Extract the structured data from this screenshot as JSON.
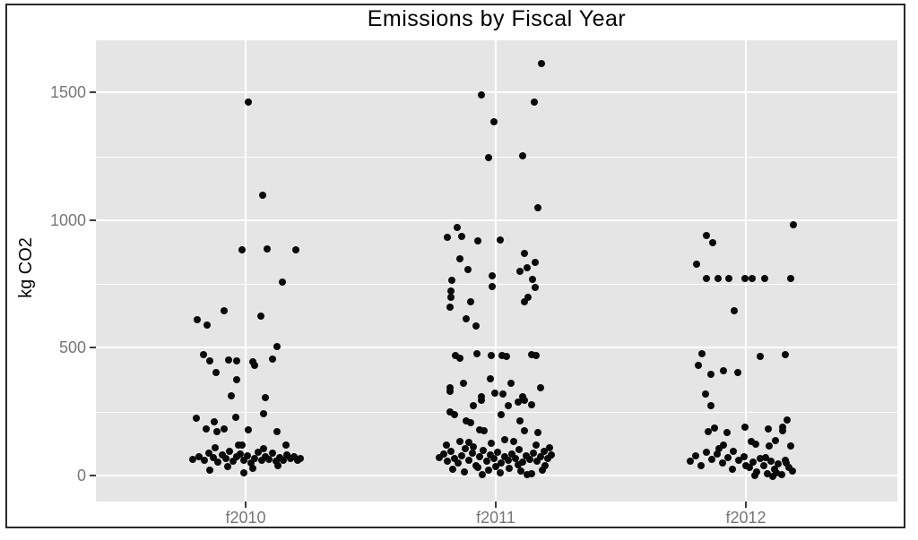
{
  "chart_data": {
    "type": "scatter",
    "subtype": "jittered-strip-plot",
    "title": "Emissions by Fiscal Year",
    "xlabel": "",
    "ylabel": "kg CO2",
    "categories": [
      "f2010",
      "f2011",
      "f2012"
    ],
    "y_ticks": [
      0,
      500,
      1000,
      1500
    ],
    "y_minor_ticks": [
      250,
      750,
      1250
    ],
    "ylim": [
      -100,
      1710
    ],
    "grid": "white-on-gray",
    "legend": "none",
    "panel_background": "#e5e5e5",
    "gridline_color": "#ffffff",
    "point_color": "#0a0a0a",
    "axis_text_color": "#767676",
    "title_color": "#000000",
    "note": "points are [jitter_px_offset_from_category_center, kg_CO2_value]",
    "series": [
      {
        "name": "f2010",
        "points": [
          [
            3,
            1461
          ],
          [
            19,
            1097
          ],
          [
            -4,
            884
          ],
          [
            24,
            887
          ],
          [
            56,
            884
          ],
          [
            41,
            757
          ],
          [
            -24,
            645
          ],
          [
            -54,
            612
          ],
          [
            -43,
            589
          ],
          [
            17,
            624
          ],
          [
            35,
            505
          ],
          [
            -47,
            473
          ],
          [
            -40,
            449
          ],
          [
            -19,
            452
          ],
          [
            -10,
            449
          ],
          [
            8,
            445
          ],
          [
            10,
            432
          ],
          [
            30,
            456
          ],
          [
            -33,
            403
          ],
          [
            -10,
            375
          ],
          [
            -16,
            312
          ],
          [
            22,
            305
          ],
          [
            20,
            242
          ],
          [
            -11,
            228
          ],
          [
            -55,
            224
          ],
          [
            -35,
            210
          ],
          [
            -44,
            182
          ],
          [
            -32,
            172
          ],
          [
            -24,
            182
          ],
          [
            3,
            179
          ],
          [
            35,
            172
          ],
          [
            45,
            119
          ],
          [
            -4,
            119
          ],
          [
            -59,
            62
          ],
          [
            -52,
            75
          ],
          [
            -46,
            58
          ],
          [
            -41,
            88
          ],
          [
            -36,
            70
          ],
          [
            -31,
            52
          ],
          [
            -26,
            80
          ],
          [
            -22,
            65
          ],
          [
            -18,
            95
          ],
          [
            -14,
            55
          ],
          [
            -10,
            72
          ],
          [
            -6,
            85
          ],
          [
            -2,
            60
          ],
          [
            2,
            78
          ],
          [
            6,
            50
          ],
          [
            10,
            68
          ],
          [
            14,
            92
          ],
          [
            18,
            58
          ],
          [
            22,
            75
          ],
          [
            26,
            63
          ],
          [
            30,
            86
          ],
          [
            34,
            55
          ],
          [
            38,
            70
          ],
          [
            42,
            60
          ],
          [
            46,
            80
          ],
          [
            50,
            66
          ],
          [
            54,
            74
          ],
          [
            58,
            58
          ],
          [
            61,
            68
          ],
          [
            -34,
            110
          ],
          [
            -8,
            118
          ],
          [
            20,
            105
          ],
          [
            -20,
            35
          ],
          [
            8,
            28
          ],
          [
            36,
            38
          ],
          [
            -40,
            22
          ],
          [
            -2,
            10
          ]
        ]
      },
      {
        "name": "f2011",
        "points": [
          [
            51,
            1615
          ],
          [
            -16,
            1490
          ],
          [
            43,
            1462
          ],
          [
            -2,
            1385
          ],
          [
            -8,
            1244
          ],
          [
            30,
            1251
          ],
          [
            47,
            1048
          ],
          [
            -43,
            971
          ],
          [
            -54,
            932
          ],
          [
            -38,
            936
          ],
          [
            -20,
            918
          ],
          [
            5,
            922
          ],
          [
            32,
            869
          ],
          [
            -40,
            848
          ],
          [
            44,
            834
          ],
          [
            35,
            813
          ],
          [
            27,
            799
          ],
          [
            -31,
            806
          ],
          [
            -4,
            782
          ],
          [
            41,
            768
          ],
          [
            -49,
            764
          ],
          [
            -4,
            740
          ],
          [
            44,
            736
          ],
          [
            -50,
            722
          ],
          [
            -50,
            697
          ],
          [
            36,
            697
          ],
          [
            32,
            680
          ],
          [
            -28,
            680
          ],
          [
            -51,
            659
          ],
          [
            -33,
            613
          ],
          [
            -22,
            585
          ],
          [
            -45,
            470
          ],
          [
            -40,
            459
          ],
          [
            -21,
            477
          ],
          [
            -5,
            470
          ],
          [
            7,
            470
          ],
          [
            12,
            466
          ],
          [
            40,
            473
          ],
          [
            45,
            470
          ],
          [
            -6,
            379
          ],
          [
            -36,
            361
          ],
          [
            -51,
            344
          ],
          [
            -51,
            330
          ],
          [
            17,
            361
          ],
          [
            50,
            344
          ],
          [
            -1,
            323
          ],
          [
            8,
            319
          ],
          [
            -16,
            309
          ],
          [
            -16,
            295
          ],
          [
            30,
            309
          ],
          [
            32,
            295
          ],
          [
            25,
            288
          ],
          [
            40,
            277
          ],
          [
            14,
            274
          ],
          [
            -25,
            274
          ],
          [
            -51,
            249
          ],
          [
            -46,
            239
          ],
          [
            6,
            239
          ],
          [
            -33,
            214
          ],
          [
            -28,
            207
          ],
          [
            27,
            214
          ],
          [
            -18,
            179
          ],
          [
            -13,
            176
          ],
          [
            32,
            176
          ],
          [
            47,
            169
          ],
          [
            -63,
            70
          ],
          [
            -58,
            85
          ],
          [
            -54,
            55
          ],
          [
            -50,
            95
          ],
          [
            -46,
            68
          ],
          [
            -42,
            48
          ],
          [
            -38,
            78
          ],
          [
            -34,
            105
          ],
          [
            -30,
            60
          ],
          [
            -26,
            88
          ],
          [
            -22,
            40
          ],
          [
            -18,
            72
          ],
          [
            -14,
            98
          ],
          [
            -10,
            55
          ],
          [
            -6,
            80
          ],
          [
            -2,
            65
          ],
          [
            2,
            92
          ],
          [
            6,
            48
          ],
          [
            10,
            75
          ],
          [
            14,
            58
          ],
          [
            18,
            85
          ],
          [
            22,
            68
          ],
          [
            26,
            100
          ],
          [
            30,
            52
          ],
          [
            34,
            78
          ],
          [
            38,
            62
          ],
          [
            42,
            88
          ],
          [
            46,
            55
          ],
          [
            50,
            72
          ],
          [
            54,
            95
          ],
          [
            58,
            65
          ],
          [
            62,
            80
          ],
          [
            -55,
            120
          ],
          [
            -30,
            130
          ],
          [
            -5,
            125
          ],
          [
            20,
            135
          ],
          [
            45,
            118
          ],
          [
            60,
            108
          ],
          [
            -48,
            25
          ],
          [
            -35,
            15
          ],
          [
            -20,
            30
          ],
          [
            -8,
            20
          ],
          [
            5,
            10
          ],
          [
            15,
            28
          ],
          [
            28,
            18
          ],
          [
            40,
            8
          ],
          [
            52,
            22
          ],
          [
            35,
            2
          ],
          [
            -15,
            5
          ],
          [
            10,
            140
          ],
          [
            0,
            35
          ],
          [
            25,
            42
          ],
          [
            -40,
            135
          ],
          [
            55,
            38
          ],
          [
            -25,
            112
          ]
        ]
      },
      {
        "name": "f2012",
        "points": [
          [
            53,
            981
          ],
          [
            -44,
            941
          ],
          [
            -37,
            913
          ],
          [
            -55,
            828
          ],
          [
            -44,
            773
          ],
          [
            -31,
            773
          ],
          [
            -19,
            773
          ],
          [
            -1,
            773
          ],
          [
            7,
            773
          ],
          [
            21,
            773
          ],
          [
            50,
            773
          ],
          [
            -13,
            645
          ],
          [
            -49,
            477
          ],
          [
            44,
            473
          ],
          [
            16,
            466
          ],
          [
            -53,
            431
          ],
          [
            -25,
            412
          ],
          [
            -39,
            397
          ],
          [
            -9,
            403
          ],
          [
            -45,
            319
          ],
          [
            -39,
            274
          ],
          [
            46,
            218
          ],
          [
            -1,
            190
          ],
          [
            25,
            182
          ],
          [
            41,
            190
          ],
          [
            41,
            176
          ],
          [
            -35,
            186
          ],
          [
            -42,
            172
          ],
          [
            -21,
            169
          ],
          [
            6,
            133
          ],
          [
            11,
            123
          ],
          [
            -25,
            119
          ],
          [
            33,
            137
          ],
          [
            26,
            116
          ],
          [
            50,
            116
          ],
          [
            -62,
            55
          ],
          [
            -56,
            78
          ],
          [
            -50,
            40
          ],
          [
            -44,
            90
          ],
          [
            -38,
            62
          ],
          [
            -32,
            85
          ],
          [
            -26,
            48
          ],
          [
            -20,
            70
          ],
          [
            -14,
            95
          ],
          [
            -8,
            58
          ],
          [
            -2,
            75
          ],
          [
            4,
            30
          ],
          [
            8,
            52
          ],
          [
            12,
            15
          ],
          [
            16,
            65
          ],
          [
            20,
            38
          ],
          [
            24,
            8
          ],
          [
            28,
            55
          ],
          [
            32,
            25
          ],
          [
            36,
            45
          ],
          [
            40,
            5
          ],
          [
            44,
            60
          ],
          [
            48,
            32
          ],
          [
            52,
            18
          ],
          [
            10,
            0
          ],
          [
            22,
            70
          ],
          [
            34,
            12
          ],
          [
            -30,
            105
          ],
          [
            -15,
            25
          ],
          [
            0,
            40
          ],
          [
            45,
            48
          ],
          [
            30,
            -5
          ]
        ]
      }
    ]
  }
}
